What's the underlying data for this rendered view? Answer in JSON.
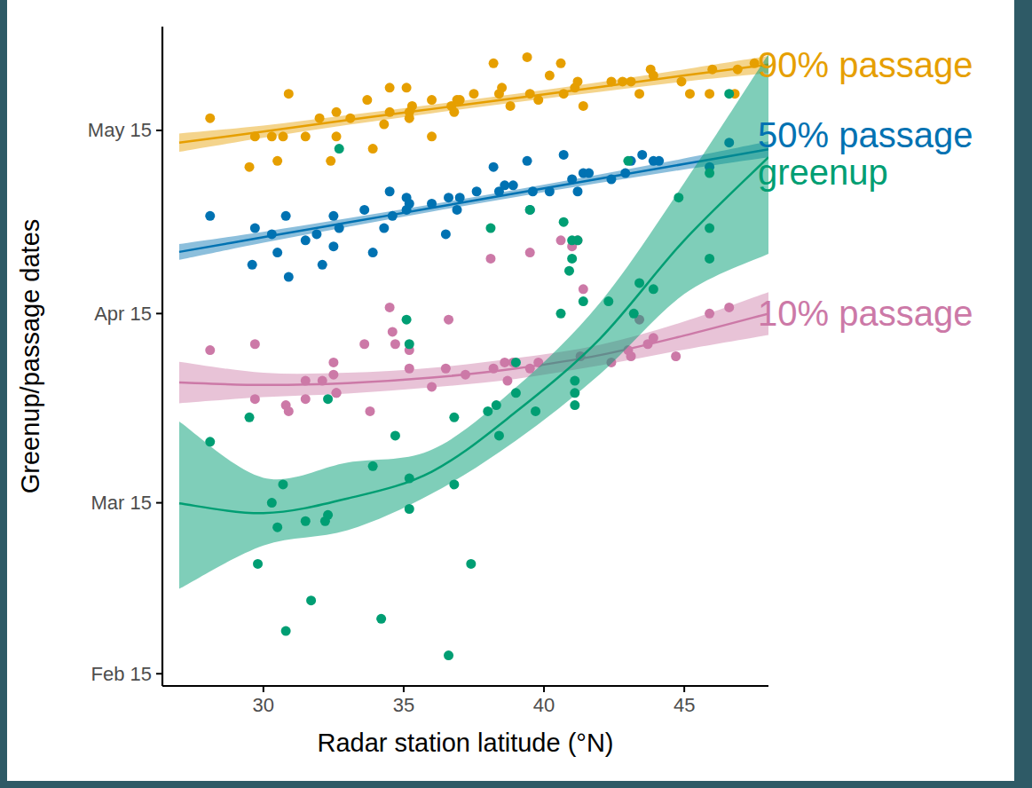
{
  "chart_data": {
    "type": "scatter",
    "x_label": "Radar station latitude (°N)",
    "y_label": "Greenup/passage dates",
    "xlim": [
      26.4,
      48
    ],
    "xticks": [
      30,
      35,
      40,
      45
    ],
    "ylim": [
      44,
      152
    ],
    "yticks": [
      {
        "value": 46,
        "label": "Feb 15"
      },
      {
        "value": 74,
        "label": "Mar 15"
      },
      {
        "value": 105,
        "label": "Apr 15"
      },
      {
        "value": 135,
        "label": "May 15"
      }
    ],
    "series": [
      {
        "name": "90% passage",
        "color": "#E69F00",
        "marker": "circle",
        "x": [
          28.1,
          29.5,
          29.7,
          30.3,
          30.5,
          30.7,
          30.9,
          31.5,
          32.0,
          32.4,
          32.6,
          32.6,
          33.1,
          33.7,
          33.9,
          34.3,
          34.5,
          34.5,
          35.1,
          35.2,
          35.2,
          35.3,
          36.0,
          36.0,
          36.7,
          36.8,
          36.9,
          37.0,
          37.5,
          38.2,
          38.4,
          38.5,
          38.8,
          39.4,
          39.5,
          39.8,
          40.2,
          40.6,
          40.7,
          41.1,
          41.2,
          41.4,
          42.4,
          42.8,
          43.1,
          43.4,
          43.8,
          43.9,
          44.9,
          45.2,
          45.9,
          46.0,
          46.8,
          46.9,
          47.5
        ],
        "values": [
          137,
          129,
          134,
          134,
          130,
          134,
          141,
          134,
          137,
          130,
          134,
          138,
          137,
          140,
          132,
          136,
          142,
          138,
          142,
          137,
          138,
          139,
          140,
          134,
          139,
          138,
          140,
          140,
          141,
          146,
          141,
          142,
          139,
          147,
          141,
          140,
          144,
          146,
          141,
          142,
          143,
          139,
          143,
          143,
          143,
          141,
          145,
          144,
          143,
          141,
          141,
          145,
          141,
          145,
          146
        ],
        "fit": {
          "x": [
            27,
            30,
            33,
            36,
            39,
            42,
            45,
            48
          ],
          "values": [
            133.0,
            134.8,
            136.7,
            138.5,
            140.3,
            142.1,
            144.0,
            145.8
          ],
          "lower": [
            131.5,
            133.8,
            135.9,
            137.8,
            139.6,
            141.3,
            143.0,
            144.4
          ],
          "upper": [
            134.5,
            135.8,
            137.5,
            139.2,
            141.0,
            142.9,
            145.0,
            147.2
          ]
        }
      },
      {
        "name": "50% passage",
        "color": "#0072B2",
        "marker": "circle",
        "x": [
          28.1,
          29.6,
          29.7,
          30.3,
          30.5,
          30.8,
          30.9,
          31.5,
          31.9,
          32.1,
          32.5,
          32.5,
          32.7,
          33.6,
          33.9,
          34.3,
          34.5,
          34.6,
          35.1,
          35.1,
          35.2,
          36.0,
          36.5,
          36.6,
          36.9,
          37.0,
          37.6,
          38.2,
          38.4,
          38.6,
          38.9,
          39.4,
          39.5,
          39.6,
          40.2,
          40.7,
          41.0,
          41.2,
          41.4,
          41.6,
          42.4,
          42.9,
          43.1,
          43.5,
          43.9,
          44.1,
          45.9,
          46.6
        ],
        "values": [
          121,
          113,
          119,
          118,
          115,
          121,
          111,
          117,
          118,
          113,
          116,
          121,
          119,
          122,
          115,
          119,
          125,
          121,
          124,
          122,
          123,
          123,
          118,
          124,
          122,
          124,
          125,
          129,
          125,
          126,
          126,
          130,
          122,
          125,
          125,
          131,
          127,
          125,
          128,
          128,
          127,
          128,
          130,
          131,
          130,
          130,
          129,
          133
        ],
        "fit": {
          "x": [
            27,
            30,
            33,
            36,
            39,
            42,
            45,
            48
          ],
          "values": [
            115.1,
            117.5,
            119.9,
            122.3,
            124.7,
            127.1,
            129.5,
            131.9
          ],
          "lower": [
            113.8,
            116.6,
            119.2,
            121.7,
            124.1,
            126.4,
            128.6,
            130.6
          ],
          "upper": [
            116.4,
            118.4,
            120.6,
            122.9,
            125.3,
            127.8,
            130.4,
            133.2
          ]
        }
      },
      {
        "name": "greenup",
        "color": "#009E73",
        "marker": "circle",
        "x": [
          28.1,
          29.5,
          29.8,
          30.3,
          30.5,
          30.7,
          30.8,
          31.5,
          31.7,
          32.2,
          32.3,
          32.3,
          32.7,
          33.9,
          34.2,
          34.7,
          35.1,
          35.2,
          35.2,
          35.2,
          36.6,
          36.8,
          36.8,
          37.4,
          38.0,
          38.1,
          38.3,
          38.4,
          39.0,
          39.0,
          39.5,
          39.7,
          40.6,
          40.7,
          40.9,
          41.0,
          41.0,
          41.1,
          41.1,
          41.1,
          41.2,
          41.4,
          42.3,
          43.0,
          43.2,
          43.4,
          43.9,
          44.8,
          45.9,
          45.9,
          45.9,
          46.6
        ],
        "values": [
          84,
          88,
          64,
          74,
          70,
          77,
          53,
          71,
          58,
          71,
          72,
          91,
          132,
          80,
          55,
          85,
          104,
          100,
          78,
          73,
          49,
          88,
          77,
          64,
          89,
          119,
          90,
          85,
          97,
          92,
          122,
          89,
          105,
          120,
          112,
          117,
          114,
          94,
          92,
          90,
          117,
          107,
          107,
          130,
          105,
          110,
          109,
          124,
          114,
          119,
          128,
          141
        ],
        "fit": {
          "x": [
            27,
            30,
            33,
            36,
            39,
            42,
            45,
            48
          ],
          "values": [
            73.9,
            72.3,
            74.7,
            79.1,
            88.9,
            100.9,
            117.0,
            130.6
          ],
          "lower": [
            59.9,
            67.0,
            69.5,
            75.5,
            84.2,
            95.1,
            108.2,
            114.8
          ],
          "upper": [
            87.3,
            78.1,
            80.6,
            82.7,
            92.9,
            106.8,
            126.4,
            147.5
          ]
        }
      },
      {
        "name": "10% passage",
        "color": "#CC79A7",
        "marker": "circle",
        "x": [
          28.1,
          29.7,
          29.7,
          30.8,
          30.9,
          31.5,
          31.5,
          32.1,
          32.5,
          32.5,
          32.6,
          32.6,
          33.6,
          33.8,
          34.5,
          34.6,
          34.7,
          35.2,
          35.2,
          36.0,
          36.5,
          36.6,
          37.2,
          38.1,
          38.2,
          38.6,
          38.7,
          38.9,
          39.5,
          39.5,
          39.8,
          40.6,
          41.0,
          41.2,
          41.3,
          41.4,
          42.4,
          43.0,
          43.1,
          43.4,
          43.7,
          43.9,
          44.7,
          45.9,
          46.6
        ],
        "values": [
          99,
          91,
          100,
          90,
          89,
          91,
          94,
          94,
          97,
          95,
          92,
          92,
          100,
          89,
          106,
          102,
          100,
          96,
          99,
          93,
          96,
          104,
          95,
          114,
          96,
          97,
          94,
          97,
          115,
          96,
          97,
          117,
          116,
          117,
          98,
          109,
          97,
          99,
          98,
          104,
          100,
          101,
          98,
          105,
          106
        ],
        "fit": {
          "x": [
            27,
            30,
            33,
            36,
            39,
            42,
            45,
            48
          ],
          "values": [
            93.7,
            93.3,
            93.6,
            94.5,
            96.0,
            98.2,
            101.4,
            105.0
          ],
          "lower": [
            90.3,
            91.3,
            91.9,
            92.9,
            94.3,
            96.5,
            99.1,
            101.5
          ],
          "upper": [
            97.1,
            95.3,
            95.3,
            96.1,
            97.7,
            99.9,
            103.7,
            108.5
          ]
        }
      }
    ]
  }
}
